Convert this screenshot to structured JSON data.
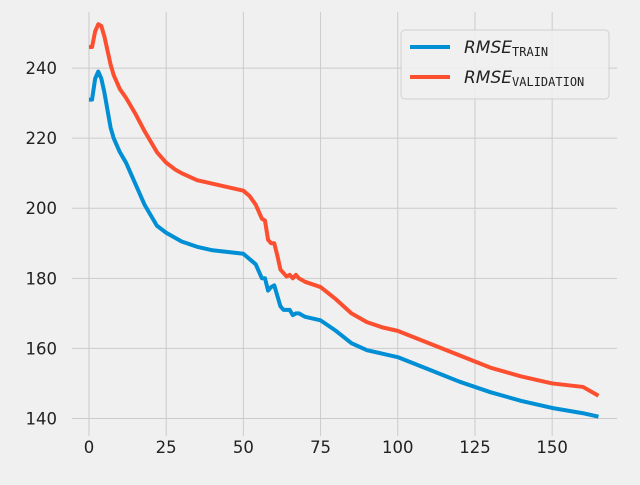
{
  "chart_data": {
    "type": "line",
    "title": "",
    "xlabel": "",
    "ylabel": "",
    "xlim": [
      -5.5,
      171
    ],
    "ylim": [
      135,
      256
    ],
    "x_ticks": [
      0,
      25,
      50,
      75,
      100,
      125,
      150
    ],
    "x_tick_labels": [
      "0",
      "25",
      "50",
      "75",
      "100",
      "125",
      "150"
    ],
    "y_ticks": [
      140,
      160,
      180,
      200,
      220,
      240
    ],
    "y_tick_labels": [
      "140",
      "160",
      "180",
      "200",
      "220",
      "240"
    ],
    "grid": true,
    "legend": {
      "placement": "top-right",
      "entries": [
        {
          "base": "RMSE",
          "sub": "TRAIN",
          "color": "#008fd5"
        },
        {
          "base": "RMSE",
          "sub": "VALIDATION",
          "color": "#fc4f30"
        }
      ]
    },
    "series": [
      {
        "color": "#008fd5",
        "x": [
          0,
          1,
          2,
          3,
          4,
          5,
          6,
          7,
          8,
          10,
          12,
          15,
          18,
          20,
          22,
          25,
          28,
          30,
          35,
          40,
          45,
          50,
          52,
          54,
          56,
          57,
          58,
          59,
          60,
          61,
          62,
          63,
          64,
          65,
          66,
          67,
          68,
          70,
          75,
          80,
          85,
          90,
          95,
          100,
          110,
          120,
          130,
          140,
          150,
          160,
          165
        ],
        "y": [
          231,
          231,
          237,
          239,
          237,
          233,
          228,
          223,
          220,
          216,
          213,
          207,
          201,
          198,
          195,
          193,
          191.5,
          190.5,
          189,
          188,
          187.5,
          187,
          185.5,
          184,
          180,
          180,
          176.5,
          177.5,
          178,
          175,
          172,
          171,
          171,
          171,
          169.5,
          170,
          170,
          169,
          168,
          165,
          161.5,
          159.5,
          158.5,
          157.5,
          154,
          150.5,
          147.5,
          145,
          143,
          141.5,
          140.5
        ]
      },
      {
        "color": "#fc4f30",
        "x": [
          0,
          1,
          2,
          3,
          4,
          5,
          6,
          7,
          8,
          10,
          12,
          15,
          18,
          20,
          22,
          25,
          28,
          30,
          35,
          40,
          45,
          50,
          52,
          54,
          56,
          57,
          58,
          59,
          60,
          61,
          62,
          63,
          64,
          65,
          66,
          67,
          68,
          70,
          75,
          80,
          85,
          90,
          95,
          100,
          110,
          120,
          130,
          140,
          150,
          155,
          160,
          165
        ],
        "y": [
          246,
          246,
          250.5,
          252.5,
          252,
          249,
          245,
          241,
          238,
          234,
          231.5,
          227,
          222,
          219,
          216,
          213,
          211,
          210,
          208,
          207,
          206,
          205,
          203.5,
          201,
          197,
          196.5,
          191,
          190,
          190,
          186.5,
          182.5,
          181.5,
          180.5,
          181,
          180,
          181,
          180,
          179,
          177.5,
          174,
          170,
          167.5,
          166,
          165,
          161.5,
          158,
          154.5,
          152,
          150,
          149.5,
          149,
          146.5
        ]
      }
    ]
  }
}
